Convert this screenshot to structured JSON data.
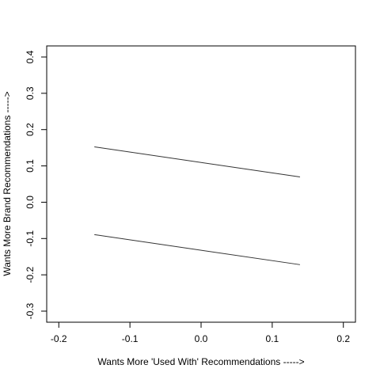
{
  "chart_data": {
    "type": "line",
    "xlabel": "Wants More 'Used With' Recommendations ----->",
    "ylabel": "Wants More Brand Recommendations ----->",
    "x": [
      -0.15,
      0.139
    ],
    "series": [
      {
        "color": "#333333",
        "values": [
          0.1525,
          0.0697
        ]
      },
      {
        "color": "#333333",
        "values": [
          -0.0893,
          -0.172
        ]
      }
    ],
    "xlim": [
      -0.217,
      0.217
    ],
    "ylim": [
      -0.3305,
      0.4305
    ],
    "xticks": [
      -0.2,
      -0.1,
      {
        "value": 0,
        "label": "0.0"
      },
      0.1,
      0.2
    ],
    "yticks": [
      -0.3,
      -0.2,
      -0.1,
      {
        "value": 0,
        "label": "0.0"
      },
      0.1,
      0.2,
      0.3,
      0.4
    ]
  }
}
